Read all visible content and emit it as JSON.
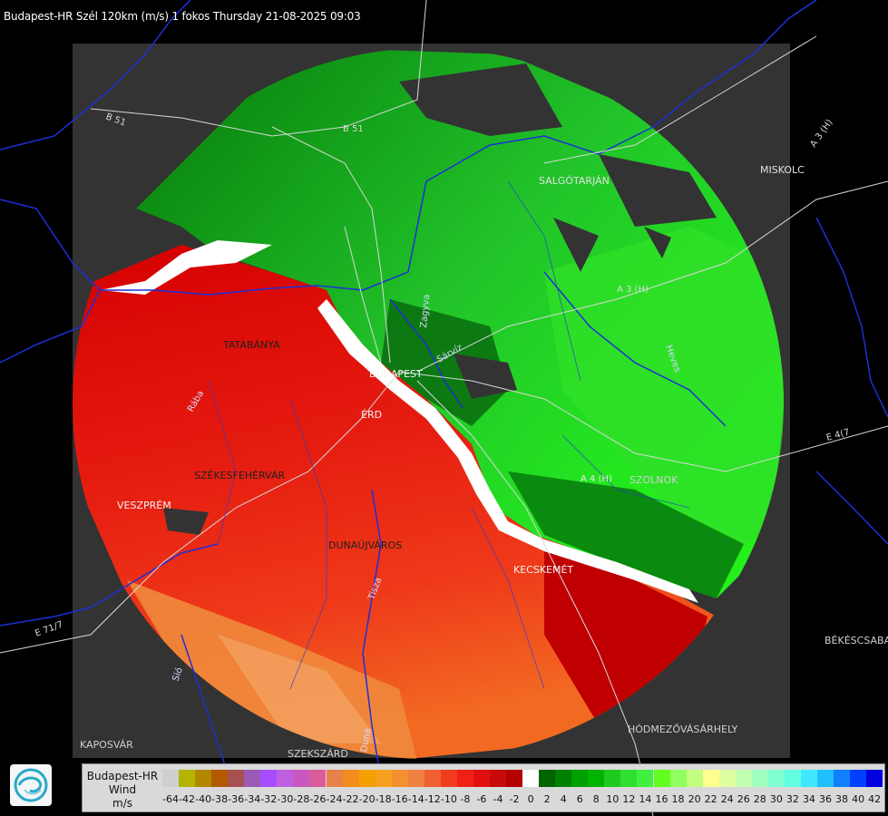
{
  "header": {
    "title": "Budapest-HR Szél 120km (m/s) 1 fokos Thursday 21-08-2025 09:03"
  },
  "legend": {
    "line1": "Budapest-HR",
    "line2": "Wind",
    "line3": "m/s",
    "ticks": [
      "-64",
      "-42",
      "-40",
      "-38",
      "-36",
      "-34",
      "-32",
      "-30",
      "-28",
      "-26",
      "-24",
      "-22",
      "-20",
      "-18",
      "-16",
      "-14",
      "-12",
      "-10",
      "-8",
      "-6",
      "-4",
      "-2",
      "0",
      "2",
      "4",
      "6",
      "8",
      "10",
      "12",
      "14",
      "16",
      "18",
      "20",
      "22",
      "24",
      "26",
      "28",
      "30",
      "32",
      "34",
      "36",
      "38",
      "40",
      "42"
    ],
    "colors": [
      "#cfcfcf",
      "#b3b300",
      "#b38600",
      "#b35900",
      "#a65050",
      "#9a5ab3",
      "#a64dff",
      "#bf5fe0",
      "#c858c0",
      "#d85c9c",
      "#e8804a",
      "#f28c1c",
      "#f5a000",
      "#f7a020",
      "#f59030",
      "#f08040",
      "#f06030",
      "#f03c1c",
      "#f02018",
      "#e01010",
      "#c80a0a",
      "#b40000",
      "#ffffff",
      "#006400",
      "#008000",
      "#00a000",
      "#00b400",
      "#20c820",
      "#30e030",
      "#40f040",
      "#60ff20",
      "#90ff60",
      "#c0ff80",
      "#ffff90",
      "#e0ffa0",
      "#c0ffb0",
      "#a0ffc0",
      "#80ffd0",
      "#60ffe0",
      "#40e8ff",
      "#20c0ff",
      "#1080ff",
      "#0040ff",
      "#0000e0"
    ]
  },
  "map_labels": {
    "tatabanya": "TATABÁNYA",
    "budapest": "BUDAPEST",
    "erd": "ÉRD",
    "szekesfehervar": "SZÉKESFEHÉRVÁR",
    "veszprem": "VESZPRÉM",
    "dunaujvaros": "DUNAÚJVÁROS",
    "kecskemet": "KECSKEMÉT",
    "salgotarjan": "SALGÓTARJÁN",
    "miskolc": "MISKOLC",
    "kaposvar": "KAPOSVÁR",
    "szekszard": "SZEKSZÁRD",
    "hodmezovasarhely": "HÓDMEZŐVÁSÁRHELY",
    "bekescsaba": "BÉKÉSCSABA",
    "szolnok": "SZOLNOK",
    "road_b51a": "B 51",
    "road_b51b": "B 51",
    "road_a4": "A 4 (H)",
    "road_a3": "A 3 (H)",
    "road_e71": "E 71/7",
    "road_e47": "E 4(7",
    "road_a3b": "A 3 (H)",
    "river_duna": "Duna",
    "river_tisza": "Tisza",
    "river_sio": "Sió",
    "river_zagyva": "Zagyva",
    "river_hevesi": "Heves",
    "river_raba": "Rába",
    "river_sarviz": "Sárvíz"
  },
  "colors": {
    "panel": "#333333",
    "border": "#1e2fd6",
    "road": "#d8d8d8"
  }
}
